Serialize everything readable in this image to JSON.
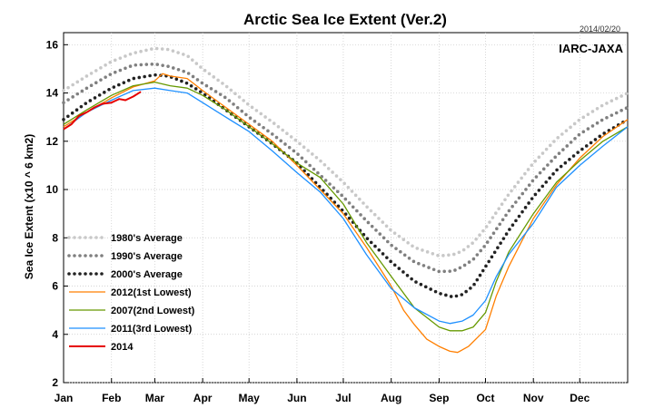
{
  "chart_data": {
    "type": "line",
    "title": "Arctic Sea Ice Extent (Ver.2)",
    "date_label": "2014/02/20",
    "source_label": "IARC-JAXA",
    "ylabel": "Sea Ice Extent (x10 ^ 6 km2)",
    "xlabel": "",
    "ylim": [
      2,
      16.5
    ],
    "xlim": [
      0,
      365
    ],
    "y_ticks": [
      2,
      4,
      6,
      8,
      10,
      12,
      14,
      16
    ],
    "x_ticks": [
      {
        "label": "Jan",
        "day": 0
      },
      {
        "label": "Feb",
        "day": 31
      },
      {
        "label": "Mar",
        "day": 59
      },
      {
        "label": "Apr",
        "day": 90
      },
      {
        "label": "May",
        "day": 120
      },
      {
        "label": "Jun",
        "day": 151
      },
      {
        "label": "Jul",
        "day": 181
      },
      {
        "label": "Aug",
        "day": 212
      },
      {
        "label": "Sep",
        "day": 243
      },
      {
        "label": "Oct",
        "day": 273
      },
      {
        "label": "Nov",
        "day": 304
      },
      {
        "label": "Dec",
        "day": 334
      }
    ],
    "grid": true,
    "legend_position": "bottom-left",
    "series": [
      {
        "name": "1980's Average",
        "color": "#c8c8c8",
        "style": "dotted",
        "x": [
          0,
          15,
          31,
          45,
          59,
          68,
          80,
          90,
          105,
          120,
          135,
          151,
          166,
          181,
          196,
          212,
          227,
          243,
          252,
          258,
          265,
          273,
          288,
          304,
          319,
          334,
          349,
          365
        ],
        "y": [
          14.1,
          14.7,
          15.3,
          15.65,
          15.85,
          15.8,
          15.55,
          15.0,
          14.3,
          13.5,
          12.8,
          12.0,
          11.2,
          10.3,
          9.3,
          8.3,
          7.6,
          7.25,
          7.3,
          7.45,
          7.8,
          8.4,
          9.8,
          11.1,
          12.1,
          12.9,
          13.5,
          14.0
        ]
      },
      {
        "name": "1990's Average",
        "color": "#808080",
        "style": "dotted",
        "x": [
          0,
          15,
          31,
          45,
          59,
          68,
          80,
          90,
          105,
          120,
          135,
          151,
          166,
          181,
          196,
          212,
          227,
          243,
          252,
          258,
          265,
          273,
          288,
          304,
          319,
          334,
          349,
          365
        ],
        "y": [
          13.6,
          14.2,
          14.8,
          15.15,
          15.2,
          15.1,
          14.85,
          14.4,
          13.8,
          13.0,
          12.3,
          11.5,
          10.6,
          9.7,
          8.7,
          7.7,
          7.0,
          6.6,
          6.62,
          6.8,
          7.1,
          7.7,
          9.1,
          10.4,
          11.4,
          12.3,
          12.9,
          13.4
        ]
      },
      {
        "name": "2000's Average",
        "color": "#222222",
        "style": "dotted",
        "x": [
          0,
          15,
          31,
          45,
          59,
          68,
          80,
          90,
          105,
          120,
          135,
          151,
          166,
          181,
          196,
          212,
          227,
          243,
          252,
          258,
          265,
          273,
          288,
          304,
          319,
          334,
          349,
          365
        ],
        "y": [
          12.9,
          13.6,
          14.2,
          14.6,
          14.75,
          14.7,
          14.4,
          14.0,
          13.3,
          12.6,
          11.9,
          11.1,
          10.1,
          9.1,
          8.0,
          7.0,
          6.2,
          5.7,
          5.55,
          5.65,
          6.0,
          6.8,
          8.3,
          9.7,
          10.8,
          11.6,
          12.3,
          12.9
        ]
      },
      {
        "name": "2012(1st Lowest)",
        "color": "#ff7f00",
        "style": "solid",
        "x": [
          0,
          15,
          31,
          45,
          59,
          64,
          69,
          80,
          90,
          105,
          120,
          135,
          151,
          166,
          181,
          196,
          212,
          220,
          227,
          235,
          243,
          250,
          255,
          262,
          273,
          280,
          288,
          304,
          319,
          334,
          349,
          365
        ],
        "y": [
          12.6,
          13.2,
          13.8,
          14.25,
          14.5,
          14.8,
          14.7,
          14.6,
          14.1,
          13.4,
          12.7,
          12.0,
          11.0,
          10.0,
          9.0,
          7.6,
          6.0,
          5.0,
          4.4,
          3.8,
          3.5,
          3.3,
          3.25,
          3.5,
          4.2,
          5.6,
          6.8,
          8.8,
          10.2,
          11.3,
          12.2,
          12.9
        ]
      },
      {
        "name": "2007(2nd Lowest)",
        "color": "#669900",
        "style": "solid",
        "x": [
          0,
          15,
          31,
          45,
          59,
          69,
          80,
          90,
          105,
          120,
          135,
          151,
          166,
          181,
          196,
          212,
          227,
          243,
          250,
          258,
          265,
          273,
          280,
          288,
          304,
          319,
          334,
          349,
          365
        ],
        "y": [
          12.7,
          13.3,
          13.9,
          14.3,
          14.45,
          14.3,
          14.2,
          13.9,
          13.3,
          12.6,
          11.9,
          11.1,
          10.5,
          9.4,
          7.8,
          6.4,
          5.1,
          4.3,
          4.15,
          4.15,
          4.3,
          4.9,
          6.2,
          7.4,
          9.0,
          10.3,
          11.2,
          12.0,
          12.6
        ]
      },
      {
        "name": "2011(3rd Lowest)",
        "color": "#1e90ff",
        "style": "solid",
        "x": [
          0,
          15,
          31,
          45,
          59,
          69,
          80,
          90,
          105,
          120,
          135,
          151,
          166,
          181,
          196,
          212,
          227,
          243,
          250,
          258,
          265,
          273,
          280,
          288,
          304,
          319,
          334,
          349,
          365
        ],
        "y": [
          12.5,
          13.2,
          13.7,
          14.1,
          14.2,
          14.1,
          14.0,
          13.6,
          13.0,
          12.4,
          11.6,
          10.7,
          9.9,
          8.8,
          7.3,
          5.9,
          5.1,
          4.55,
          4.45,
          4.55,
          4.8,
          5.4,
          6.4,
          7.3,
          8.6,
          10.1,
          11.0,
          11.8,
          12.6
        ]
      },
      {
        "name": "2014",
        "color": "#e60000",
        "style": "solid",
        "x": [
          0,
          5,
          10,
          15,
          20,
          25,
          31,
          36,
          40,
          45,
          50
        ],
        "y": [
          12.5,
          12.7,
          13.05,
          13.2,
          13.4,
          13.55,
          13.6,
          13.75,
          13.7,
          13.85,
          14.05
        ]
      }
    ]
  }
}
